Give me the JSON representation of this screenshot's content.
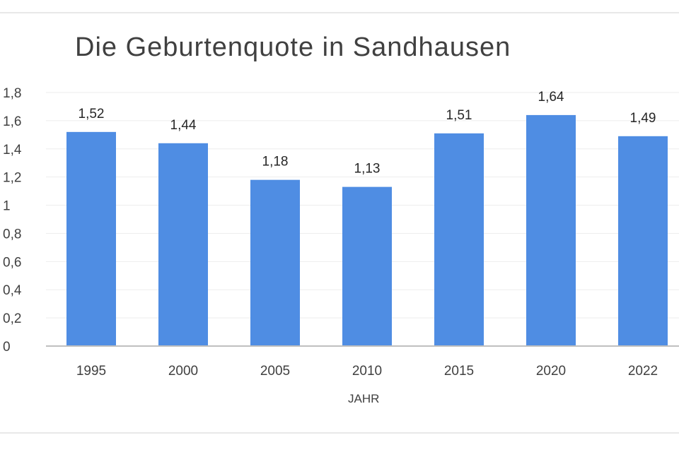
{
  "chart_data": {
    "type": "bar",
    "title": "Die Geburtenquote in Sandhausen",
    "xlabel": "JAHR",
    "ylabel": "",
    "categories": [
      "1995",
      "2000",
      "2005",
      "2010",
      "2015",
      "2020",
      "2022"
    ],
    "values": [
      1.52,
      1.44,
      1.18,
      1.13,
      1.51,
      1.64,
      1.49
    ],
    "data_labels": [
      "1,52",
      "1,44",
      "1,18",
      "1,13",
      "1,51",
      "1,64",
      "1,49"
    ],
    "ylim": [
      0,
      1.8
    ],
    "yticks": [
      "0",
      "0,2",
      "0,4",
      "0,6",
      "0,8",
      "1",
      "1,2",
      "1,4",
      "1,6",
      "1,8"
    ],
    "bar_color": "#4f8de3",
    "grid": true,
    "legend": "none"
  }
}
